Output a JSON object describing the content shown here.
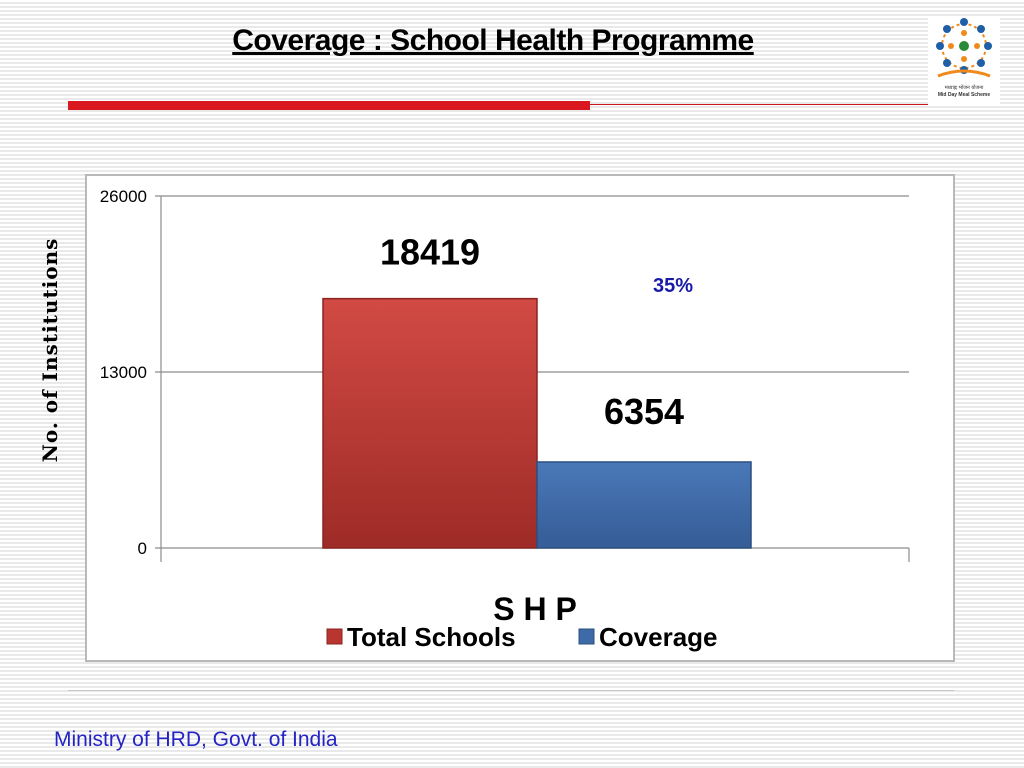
{
  "slide": {
    "title": "Coverage : School Health Programme",
    "footer": "Ministry of HRD, Govt. of India",
    "logo": {
      "caption_hindi": "मध्याह्न भोजन योजना",
      "caption_english": "Mid Day Meal Scheme"
    }
  },
  "chart_data": {
    "type": "bar",
    "categories": [
      "S H P"
    ],
    "series": [
      {
        "name": "Total Schools",
        "values": [
          18419
        ],
        "color": "#b83530"
      },
      {
        "name": "Coverage",
        "values": [
          6354
        ],
        "color": "#3f6aa8"
      }
    ],
    "data_labels": [
      "18419",
      "6354"
    ],
    "annotation": "35%",
    "annotation_color": "#1a1aa8",
    "xlabel": "S H P",
    "ylabel": "No. of Institutions",
    "ylim": [
      0,
      26000
    ],
    "yticks": [
      0,
      13000,
      26000
    ],
    "ytick_labels": [
      "0",
      "13000",
      "26000"
    ],
    "grid": true,
    "legend": "bottom"
  }
}
